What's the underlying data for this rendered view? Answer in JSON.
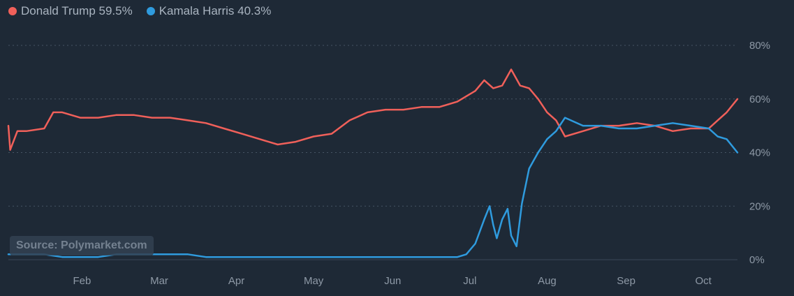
{
  "legend": {
    "items": [
      {
        "label": "Donald Trump 59.5%",
        "color": "#f0605a"
      },
      {
        "label": "Kamala Harris 40.3%",
        "color": "#2f9bde"
      }
    ]
  },
  "source": "Source: Polymarket.com",
  "colors": {
    "background": "#1e2936",
    "grid": "#475464",
    "trump": "#f0605a",
    "harris": "#2f9bde"
  },
  "chart_data": {
    "type": "line",
    "title": "",
    "xlabel": "",
    "ylabel": "",
    "ylim": [
      0,
      80
    ],
    "x_unit": "week of 2024 (week 1 = early January)",
    "y_ticks": [
      "0%",
      "20%",
      "40%",
      "60%",
      "80%"
    ],
    "y_tick_values": [
      0,
      20,
      40,
      60,
      80
    ],
    "x_ticks": [
      "Feb",
      "Mar",
      "Apr",
      "May",
      "Jun",
      "Jul",
      "Aug",
      "Sep",
      "Oct"
    ],
    "x_tick_values": [
      5.1,
      9.4,
      13.7,
      18.0,
      22.4,
      26.7,
      31.0,
      35.4,
      39.7
    ],
    "grid": "horizontal dotted",
    "legend_position": "top-left",
    "series": [
      {
        "name": "Donald Trump",
        "x": [
          1,
          1.1,
          1.5,
          2,
          3,
          3.5,
          4,
          5,
          6,
          7,
          8,
          9,
          10,
          11,
          12,
          13,
          14,
          15,
          16,
          17,
          18,
          19,
          20,
          21,
          22,
          23,
          24,
          25,
          26,
          27,
          27.5,
          28,
          28.5,
          29,
          29.5,
          30,
          30.5,
          31,
          31.5,
          32,
          33,
          34,
          35,
          36,
          37,
          38,
          39,
          40,
          40.5,
          41,
          41.6
        ],
        "values": [
          50,
          41,
          48,
          48,
          49,
          55,
          55,
          53,
          53,
          54,
          54,
          53,
          53,
          52,
          51,
          49,
          47,
          45,
          43,
          44,
          46,
          47,
          52,
          55,
          56,
          56,
          57,
          57,
          59,
          63,
          67,
          64,
          65,
          71,
          65,
          64,
          60,
          55,
          52,
          46,
          48,
          50,
          50,
          51,
          50,
          48,
          49,
          49,
          52,
          55,
          60
        ]
      },
      {
        "name": "Kamala Harris",
        "x": [
          1,
          2,
          3,
          4,
          5,
          6,
          7,
          8,
          9,
          10,
          11,
          12,
          13,
          14,
          15,
          16,
          17,
          18,
          19,
          20,
          21,
          22,
          23,
          24,
          25,
          26,
          26.5,
          27,
          27.5,
          27.8,
          28,
          28.2,
          28.5,
          28.8,
          29,
          29.3,
          29.6,
          30,
          30.5,
          31,
          31.5,
          32,
          33,
          34,
          35,
          36,
          37,
          38,
          39,
          40,
          40.5,
          41,
          41.6
        ],
        "values": [
          2,
          2,
          2,
          1,
          1,
          1,
          2,
          2,
          2,
          2,
          2,
          1,
          1,
          1,
          1,
          1,
          1,
          1,
          1,
          1,
          1,
          1,
          1,
          1,
          1,
          1,
          2,
          6,
          15,
          20,
          13,
          8,
          15,
          19,
          9,
          5,
          21,
          34,
          40,
          45,
          48,
          53,
          50,
          50,
          49,
          49,
          50,
          51,
          50,
          49,
          46,
          45,
          40
        ]
      }
    ]
  }
}
